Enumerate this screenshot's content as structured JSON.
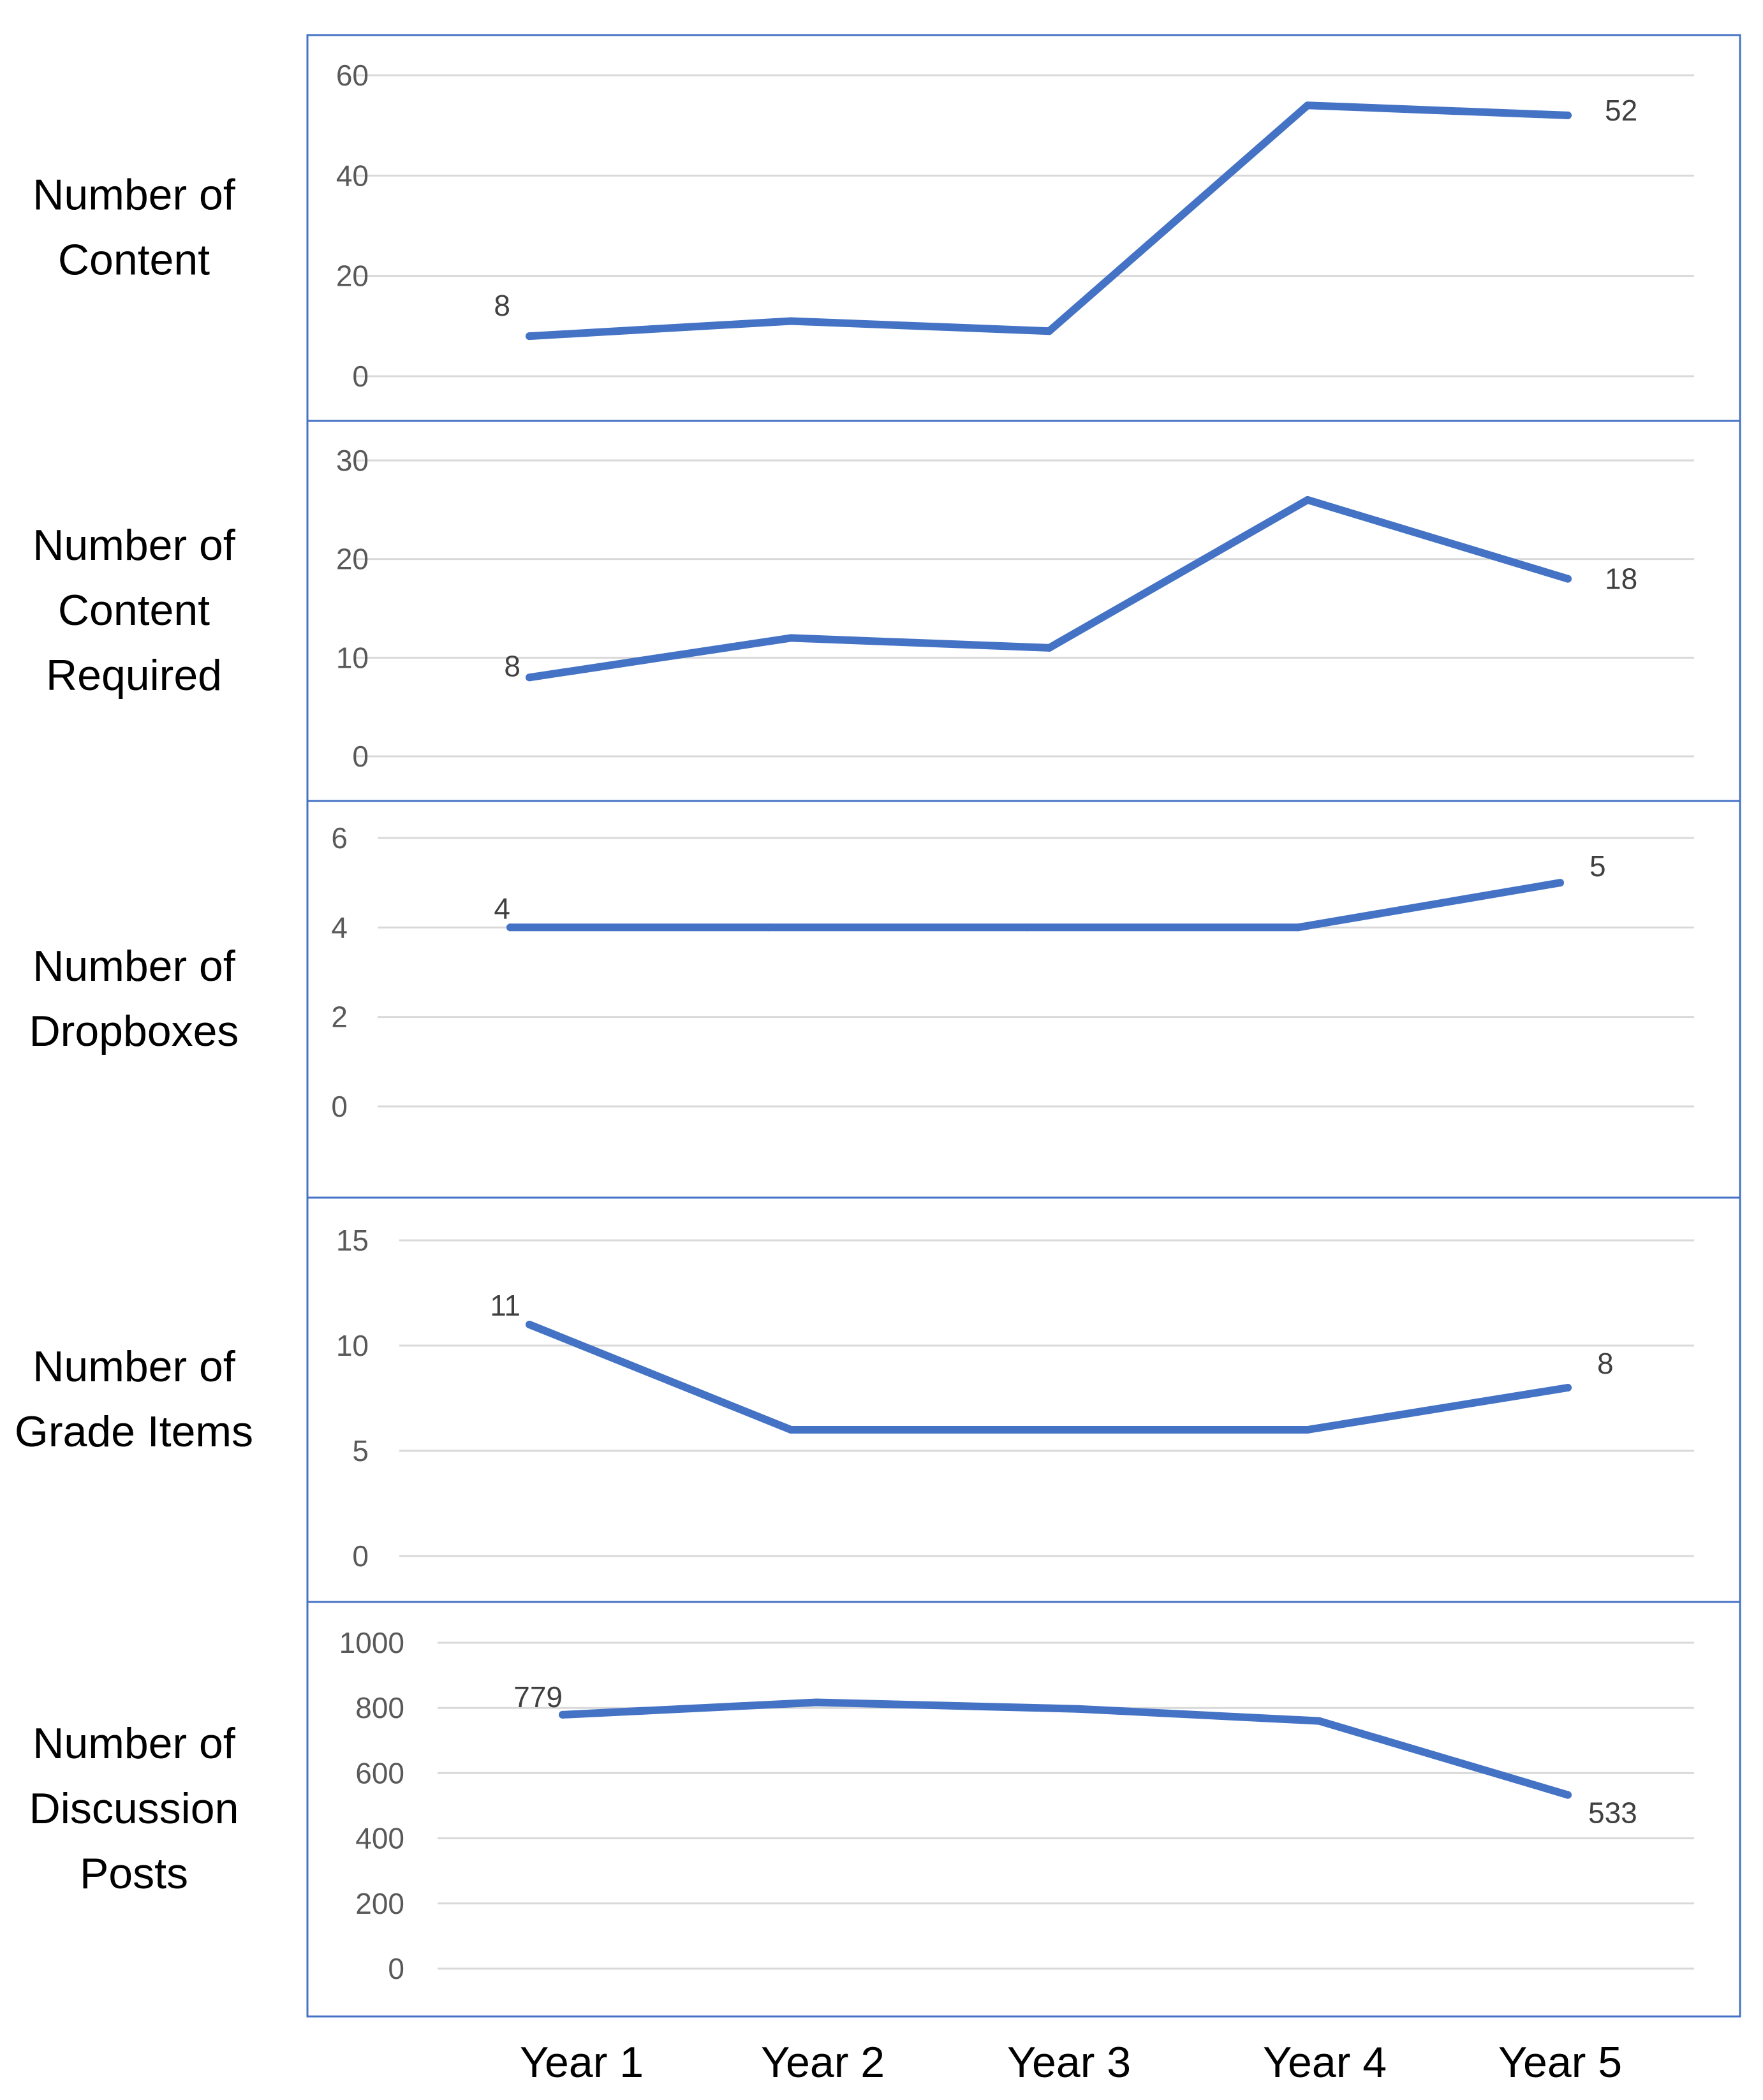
{
  "chart_data": [
    {
      "type": "line",
      "title": "Number of Content",
      "title_lines": [
        "Number of",
        "Content"
      ],
      "categories": [
        "Year 1",
        "Year 2",
        "Year 3",
        "Year 4",
        "Year 5"
      ],
      "values": [
        8,
        11,
        9,
        54,
        52
      ],
      "ylim": [
        0,
        60
      ],
      "yticks": [
        0,
        20,
        40,
        60
      ],
      "data_labels": [
        {
          "index": 0,
          "text": "8"
        },
        {
          "index": 4,
          "text": "52"
        }
      ],
      "grid": true
    },
    {
      "type": "line",
      "title": "Number of Content Required",
      "title_lines": [
        "Number of",
        "Content",
        "Required"
      ],
      "categories": [
        "Year 1",
        "Year 2",
        "Year 3",
        "Year 4",
        "Year 5"
      ],
      "values": [
        8,
        12,
        11,
        26,
        18
      ],
      "ylim": [
        0,
        30
      ],
      "yticks": [
        0,
        10,
        20,
        30
      ],
      "data_labels": [
        {
          "index": 0,
          "text": "8"
        },
        {
          "index": 4,
          "text": "18"
        }
      ],
      "grid": true
    },
    {
      "type": "line",
      "title": "Number of Dropboxes",
      "title_lines": [
        "Number of",
        "Dropboxes"
      ],
      "categories": [
        "Year 1",
        "Year 2",
        "Year 3",
        "Year 4",
        "Year 5"
      ],
      "values": [
        4,
        4,
        4,
        4,
        5
      ],
      "ylim": [
        0,
        6
      ],
      "yticks": [
        0,
        2,
        4,
        6
      ],
      "data_labels": [
        {
          "index": 0,
          "text": "4"
        },
        {
          "index": 4,
          "text": "5"
        }
      ],
      "grid": true
    },
    {
      "type": "line",
      "title": "Number of Grade Items",
      "title_lines": [
        "Number of",
        "Grade Items"
      ],
      "categories": [
        "Year 1",
        "Year 2",
        "Year 3",
        "Year 4",
        "Year 5"
      ],
      "values": [
        11,
        6,
        6,
        6,
        8
      ],
      "ylim": [
        0,
        15
      ],
      "yticks": [
        0,
        5,
        10,
        15
      ],
      "data_labels": [
        {
          "index": 0,
          "text": "11"
        },
        {
          "index": 4,
          "text": "8"
        }
      ],
      "grid": true
    },
    {
      "type": "line",
      "title": "Number of Discussion Posts",
      "title_lines": [
        "Number of",
        "Discussion",
        "Posts"
      ],
      "categories": [
        "Year 1",
        "Year 2",
        "Year 3",
        "Year 4",
        "Year 5"
      ],
      "values": [
        779,
        817,
        797,
        760,
        533
      ],
      "ylim": [
        0,
        1000
      ],
      "yticks": [
        0,
        200,
        400,
        600,
        800,
        1000
      ],
      "data_labels": [
        {
          "index": 0,
          "text": "779"
        },
        {
          "index": 4,
          "text": "533"
        }
      ],
      "grid": true
    }
  ],
  "x_axis": {
    "categories": [
      "Year 1",
      "Year 2",
      "Year 3",
      "Year 4",
      "Year 5"
    ]
  },
  "colors": {
    "line": "#4472C4",
    "border": "#4472C4",
    "grid": "#D9D9D9",
    "tick_text": "#595959",
    "label_text": "#404040",
    "title_text": "#000000"
  }
}
